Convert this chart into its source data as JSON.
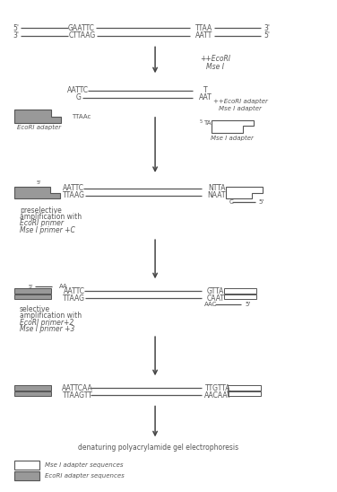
{
  "bg_color": "#ffffff",
  "text_color": "#555555",
  "gray_fill": "#999999",
  "white_fill": "#ffffff",
  "line_color": "#555555",
  "arrow_color": "#555555",
  "figsize": [
    3.76,
    5.48
  ],
  "dpi": 100,
  "step1_seq_top": "GAATTC",
  "step1_seq_bot": "CTTAAG",
  "step1_seq_right_top": "TTAA",
  "step1_seq_right_bot": "AATT",
  "arrow1_label": [
    "+EcoRI",
    "Mse I"
  ],
  "step2_seq_top": "AATTC",
  "step2_seq_bot": "G",
  "step2_seq_right_top": "T",
  "step2_seq_right_bot": "AAT",
  "adapter_ecor_label": [
    "TTAAc",
    "EcoRI adapter"
  ],
  "adapter_mse_label": [
    "5TA",
    "Mse I adapter"
  ],
  "arrow2_label": [
    "+EcoRI adapter",
    "Mse I adapter"
  ],
  "step3_seq_top": "AATTC",
  "step3_seq_bot": "TTAAG",
  "step3_seq_right_top": "NTTA",
  "step3_seq_right_bot": "NAAT",
  "step3_label_C": "C",
  "text_preselective": [
    "preselective",
    "amplification with",
    "EcoRI primer",
    "Mse I primer +C"
  ],
  "step4_label_AA": "AA",
  "step4_seq_top": "AATTC",
  "step4_seq_bot": "TTAAG",
  "step4_seq_right_top": "GTTA",
  "step4_seq_right_bot": "CAAT",
  "step4_label_AAC": "AAC",
  "text_selective": [
    "selective",
    "amplification with",
    "EcoRI primer+2",
    "Mse I primer +3"
  ],
  "step5_seq_top": "AATTCAA",
  "step5_seq_bot": "TTAAGTT",
  "step5_seq_right_top": "TTGTTA",
  "step5_seq_right_bot": "AACAAT",
  "text_gel": "denaturing polyacrylamide gel electrophoresis",
  "legend_mse": "Mse I adapter sequences",
  "legend_ecor": "EcoRI adapter sequences"
}
